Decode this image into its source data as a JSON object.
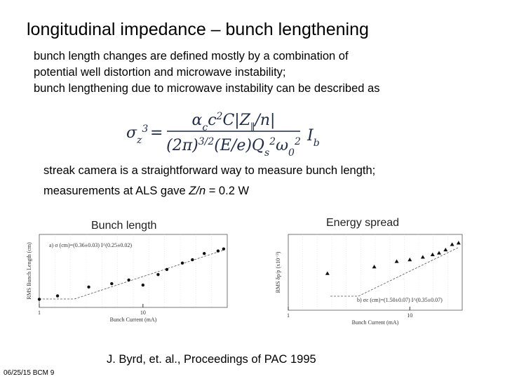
{
  "title": "longitudinal impedance – bunch lengthening",
  "intro_lines": [
    "bunch length changes are defined mostly by a combination of",
    "potential well distortion and microwave instability;",
    "bunch lengthening due to microwave instability can be described as"
  ],
  "equation": {
    "lhs": [
      {
        "text": "σ",
        "shift": "base"
      },
      {
        "text": "z",
        "shift": "sub"
      },
      {
        "text": "3",
        "shift": "sup"
      }
    ],
    "eq": "=",
    "numerator": [
      {
        "text": "α",
        "shift": "base"
      },
      {
        "text": "c",
        "shift": "sub"
      },
      {
        "text": "c",
        "shift": "base"
      },
      {
        "text": "2",
        "shift": "sup"
      },
      {
        "text": "C|Z",
        "shift": "base"
      },
      {
        "text": "∥",
        "shift": "sub"
      },
      {
        "text": "/n|",
        "shift": "base"
      }
    ],
    "denominator": [
      {
        "text": "(2π)",
        "shift": "base"
      },
      {
        "text": "3/2",
        "shift": "sup"
      },
      {
        "text": "(E/e)Q",
        "shift": "base"
      },
      {
        "text": "s",
        "shift": "sub"
      },
      {
        "text": "2",
        "shift": "sup"
      },
      {
        "text": "ω",
        "shift": "base"
      },
      {
        "text": "0",
        "shift": "sub"
      },
      {
        "text": "2",
        "shift": "sup"
      }
    ],
    "rhs": [
      {
        "text": "I",
        "shift": "base"
      },
      {
        "text": "b",
        "shift": "sub"
      }
    ]
  },
  "streak_line": "streak camera is a straightforward way to measure bunch length;",
  "measurement": {
    "before": "measurements at ALS gave ",
    "italic": "Z/n",
    "after": " = 0.2 W"
  },
  "plots": [
    {
      "title": "Bunch length",
      "xlabel": "Bunch Current (mA)",
      "ylabel": "RMS Bunch Length (cm)",
      "annotation": "a) σ (cm)=(0.36±0.03) I^(0.25±0.02)",
      "marker": "circle",
      "xlim": [
        1,
        65
      ],
      "ylim": [
        1,
        3
      ],
      "xticks": [
        1,
        10
      ],
      "x": [
        1,
        1.5,
        3,
        5,
        7.3,
        10,
        14,
        17,
        24,
        30,
        39,
        53,
        60
      ],
      "y": [
        1.13,
        1.19,
        1.36,
        1.43,
        1.51,
        1.4,
        1.64,
        1.77,
        1.95,
        2.05,
        2.25,
        2.34,
        2.41
      ]
    },
    {
      "title": "Energy spread",
      "xlabel": "Bunch Current (mA)",
      "ylabel": "RMS δp/p (x10⁻³)",
      "annotation": "b) σε (cm)=(1.50±0.07) I^(0.35±0.07)",
      "marker": "triangle",
      "xlim": [
        1,
        27
      ],
      "ylim": [
        0.8,
        1.6
      ],
      "xticks": [
        1,
        10
      ],
      "x": [
        2.1,
        5.1,
        7.8,
        10,
        12.8,
        15.4,
        17.4,
        19.7,
        22.3,
        25.2
      ],
      "y": [
        1.12,
        1.19,
        1.25,
        1.27,
        1.3,
        1.33,
        1.35,
        1.39,
        1.46,
        1.48
      ]
    }
  ],
  "citation": "J. Byrd, et. al., Proceedings of PAC 1995",
  "footer": "06/25/15 BCM 9"
}
